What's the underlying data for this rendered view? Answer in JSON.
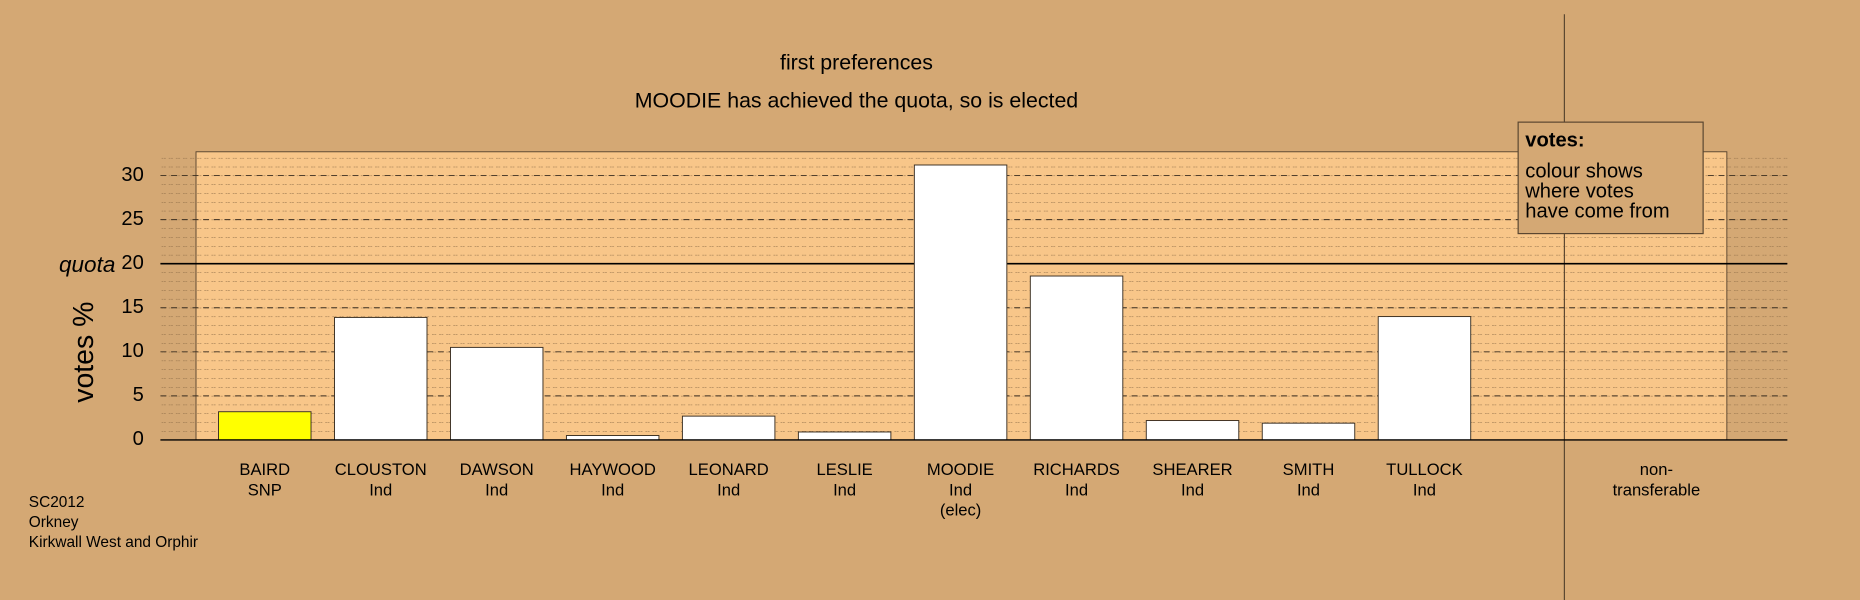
{
  "chart_data": {
    "type": "bar",
    "title": "first preferences",
    "subtitle": "MOODIE has achieved the quota, so is elected",
    "y_label": "votes %",
    "categories": [
      [
        "BAIRD",
        "SNP"
      ],
      [
        "CLOUSTON",
        "Ind"
      ],
      [
        "DAWSON",
        "Ind"
      ],
      [
        "HAYWOOD",
        "Ind"
      ],
      [
        "LEONARD",
        "Ind"
      ],
      [
        "LESLIE",
        "Ind"
      ],
      [
        "MOODIE",
        "Ind",
        "(elec)"
      ],
      [
        "RICHARDS",
        "Ind"
      ],
      [
        "SHEARER",
        "Ind"
      ],
      [
        "SMITH",
        "Ind"
      ],
      [
        "TULLOCK",
        "Ind"
      ],
      [
        "non-",
        "transferable"
      ]
    ],
    "values": [
      3.2,
      13.9,
      10.5,
      0.5,
      2.7,
      0.9,
      31.2,
      18.6,
      2.2,
      1.9,
      14.0,
      null
    ],
    "colors": [
      "#ffff00",
      "#ffffff",
      "#ffffff",
      "#ffffff",
      "#ffffff",
      "#ffffff",
      "#ffffff",
      "#ffffff",
      "#ffffff",
      "#ffffff",
      "#ffffff",
      "#ffffff"
    ],
    "ylim": [
      0,
      32.7
    ],
    "yticks": [
      0,
      5,
      10,
      15,
      20,
      25,
      30
    ],
    "quota": {
      "value": 20,
      "label": "quota"
    },
    "legend": {
      "title": "votes:",
      "lines": [
        "colour shows",
        "where votes",
        "have come from"
      ]
    },
    "grid": true,
    "footer": [
      "SC2012",
      "Orkney",
      "Kirkwall West and Orphir"
    ]
  }
}
